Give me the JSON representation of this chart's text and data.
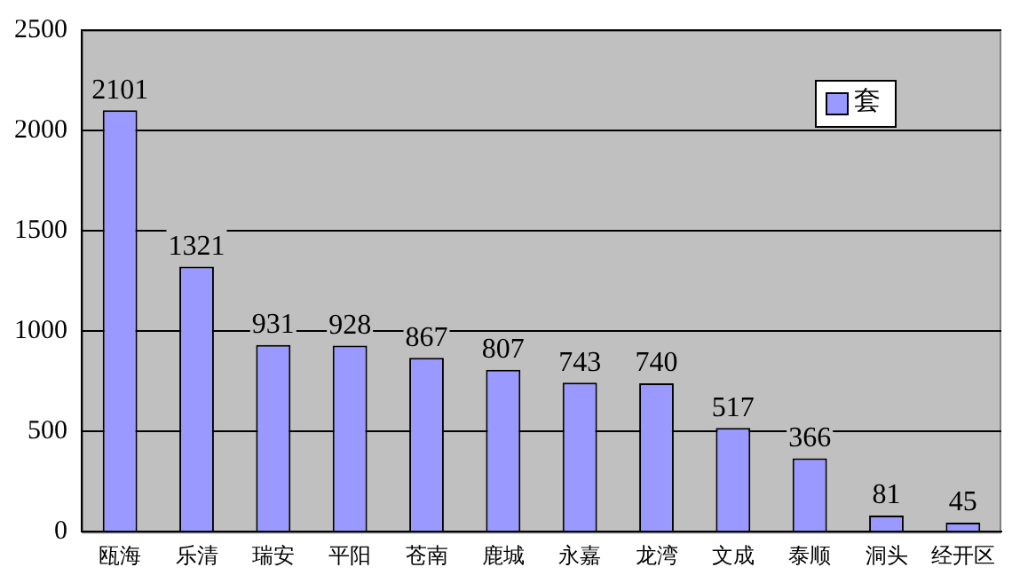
{
  "chart_data": {
    "type": "bar",
    "categories": [
      "瓯海",
      "乐清",
      "瑞安",
      "平阳",
      "苍南",
      "鹿城",
      "永嘉",
      "龙湾",
      "文成",
      "泰顺",
      "洞头",
      "经开区"
    ],
    "series": [
      {
        "name": "套",
        "color": "#9999ff",
        "values": [
          2101,
          1321,
          931,
          928,
          867,
          807,
          743,
          740,
          517,
          366,
          81,
          45
        ]
      }
    ],
    "ylim": [
      0,
      2500
    ],
    "yticks": [
      0,
      500,
      1000,
      1500,
      2000,
      2500
    ],
    "grid": "y",
    "legend": "top right",
    "data_labels": true
  }
}
